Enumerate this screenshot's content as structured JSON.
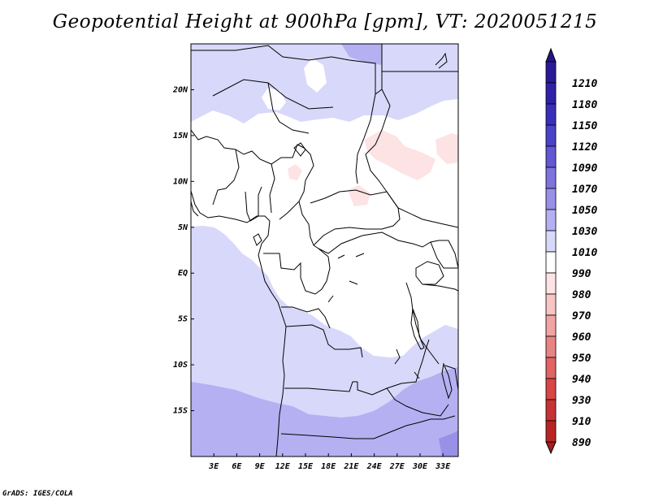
{
  "title": "Geopotential Height at 900hPa [gpm], VT: 2020051215",
  "footer": "GrADS: IGES/COLA",
  "map": {
    "lon_range": [
      0,
      35
    ],
    "lat_range": [
      -20,
      25
    ],
    "x_ticks": [
      {
        "value": 3,
        "label": "3E"
      },
      {
        "value": 6,
        "label": "6E"
      },
      {
        "value": 9,
        "label": "9E"
      },
      {
        "value": 12,
        "label": "12E"
      },
      {
        "value": 15,
        "label": "15E"
      },
      {
        "value": 18,
        "label": "18E"
      },
      {
        "value": 21,
        "label": "21E"
      },
      {
        "value": 24,
        "label": "24E"
      },
      {
        "value": 27,
        "label": "27E"
      },
      {
        "value": 30,
        "label": "30E"
      },
      {
        "value": 33,
        "label": "33E"
      }
    ],
    "y_ticks": [
      {
        "value": 20,
        "label": "20N"
      },
      {
        "value": 15,
        "label": "15N"
      },
      {
        "value": 10,
        "label": "10N"
      },
      {
        "value": 5,
        "label": "5N"
      },
      {
        "value": 0,
        "label": "EQ"
      },
      {
        "value": -5,
        "label": "5S"
      },
      {
        "value": -10,
        "label": "10S"
      },
      {
        "value": -15,
        "label": "15S"
      }
    ]
  },
  "colorbar": {
    "levels": [
      {
        "label": "1210",
        "color": "#2a1a96"
      },
      {
        "label": "1180",
        "color": "#2f22a8"
      },
      {
        "label": "1150",
        "color": "#3a2fba"
      },
      {
        "label": "1120",
        "color": "#4a42c8"
      },
      {
        "label": "1090",
        "color": "#6258d4"
      },
      {
        "label": "1070",
        "color": "#7d74e0"
      },
      {
        "label": "1050",
        "color": "#9990e8"
      },
      {
        "label": "1030",
        "color": "#b5b0f2"
      },
      {
        "label": "1010",
        "color": "#d8d8fa"
      },
      {
        "label": "990",
        "color": "#ffffff"
      },
      {
        "label": "980",
        "color": "#fde3e3"
      },
      {
        "label": "970",
        "color": "#f8c4c4"
      },
      {
        "label": "960",
        "color": "#f0a4a4"
      },
      {
        "label": "950",
        "color": "#e88484"
      },
      {
        "label": "940",
        "color": "#e06464"
      },
      {
        "label": "930",
        "color": "#d84646"
      },
      {
        "label": "910",
        "color": "#c83232"
      },
      {
        "label": "890",
        "color": "#b82424"
      }
    ],
    "top_tip_color": "#24148a",
    "bottom_tip_color": "#a81c1c"
  },
  "colors": {
    "field_white": "#ffffff",
    "field_light": "#d8d8fa",
    "field_mid": "#b5b0f2",
    "field_pink": "#fde3e3"
  }
}
